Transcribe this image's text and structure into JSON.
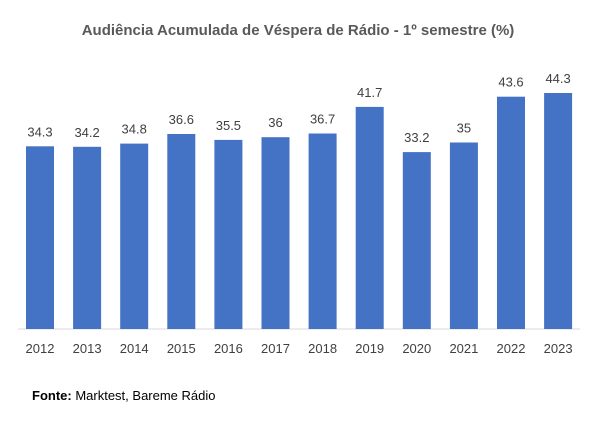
{
  "chart_data": {
    "type": "bar",
    "title": "Audiência Acumulada de Véspera de Rádio - 1º semestre (%)",
    "categories": [
      "2012",
      "2013",
      "2014",
      "2015",
      "2016",
      "2017",
      "2018",
      "2019",
      "2020",
      "2021",
      "2022",
      "2023"
    ],
    "values": [
      34.3,
      34.2,
      34.8,
      36.6,
      35.5,
      36,
      36.7,
      41.7,
      33.2,
      35,
      43.6,
      44.3
    ],
    "value_labels": [
      "34.3",
      "34.2",
      "34.8",
      "36.6",
      "35.5",
      "36",
      "36.7",
      "41.7",
      "33.2",
      "35",
      "43.6",
      "44.3"
    ],
    "xlabel": "",
    "ylabel": "",
    "ylim": [
      0,
      44.3
    ],
    "grid": false,
    "bar_color": "#4472C4"
  },
  "source": {
    "label": "Fonte:",
    "text": " Marktest, Bareme Rádio"
  }
}
